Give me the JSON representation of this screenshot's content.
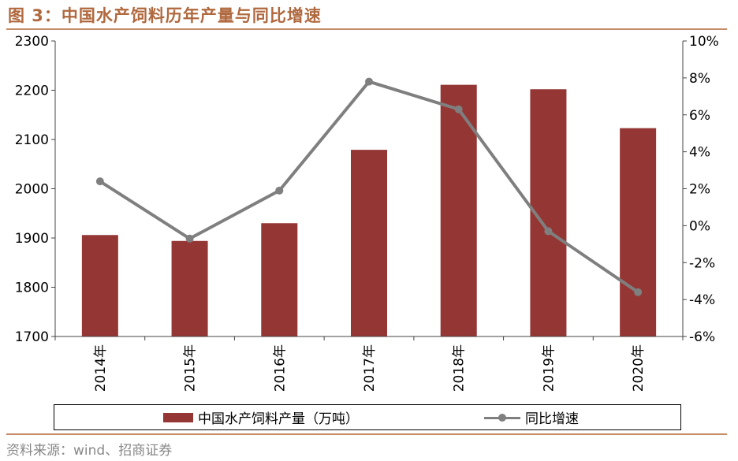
{
  "title": "图 3：中国水产饲料历年产量与同比增速",
  "source": "资料来源：wind、招商证券",
  "chart_data": {
    "type": "bar",
    "categories": [
      "2014年",
      "2015年",
      "2016年",
      "2017年",
      "2018年",
      "2019年",
      "2020年"
    ],
    "series": [
      {
        "name": "中国水产饲料产量（万吨）",
        "type": "bar",
        "axis": "left",
        "values": [
          1906,
          1894,
          1930,
          2079,
          2211,
          2202,
          2123
        ],
        "color": "#943634"
      },
      {
        "name": "同比增速",
        "type": "line",
        "axis": "right",
        "values": [
          2.4,
          -0.7,
          1.9,
          7.8,
          6.3,
          -0.3,
          -3.6
        ],
        "color": "#7f7f7f"
      }
    ],
    "y_left": {
      "ylim": [
        1700,
        2300
      ],
      "ticks": [
        "1700",
        "1800",
        "1900",
        "2000",
        "2100",
        "2200",
        "2300"
      ]
    },
    "y_right": {
      "ylim": [
        -6,
        10
      ],
      "ticks": [
        "-6%",
        "-4%",
        "-2%",
        "0%",
        "2%",
        "4%",
        "6%",
        "8%",
        "10%"
      ]
    },
    "grid": false,
    "legend": "bottom"
  }
}
